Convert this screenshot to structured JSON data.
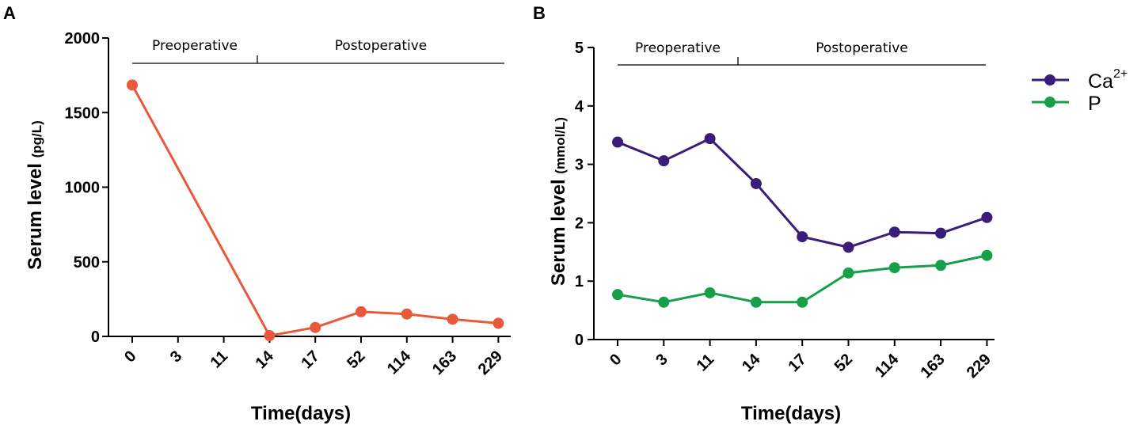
{
  "chart_data": [
    {
      "panel": "A",
      "type": "line",
      "categories": [
        "0",
        "3",
        "11",
        "14",
        "17",
        "52",
        "114",
        "163",
        "229"
      ],
      "xlabel": "Time(days)",
      "ylabel": "Serum level",
      "ylabel_unit": "(pg/L)",
      "ylim": [
        0,
        2000
      ],
      "yticks": [
        "0",
        "500",
        "1000",
        "1500",
        "2000"
      ],
      "phases": [
        {
          "label": "Preoperative",
          "from": 0,
          "to": 2.5
        },
        {
          "label": "Postoperative",
          "from": 2.5,
          "to": 8
        }
      ],
      "series": [
        {
          "name": "Serum level",
          "color": "#e8583a",
          "points": [
            [
              0,
              1685
            ],
            [
              3,
              5
            ],
            [
              4,
              60
            ],
            [
              5,
              165
            ],
            [
              6,
              150
            ],
            [
              7,
              115
            ],
            [
              8,
              88
            ]
          ]
        }
      ]
    },
    {
      "panel": "B",
      "type": "line",
      "categories": [
        "0",
        "3",
        "11",
        "14",
        "17",
        "52",
        "114",
        "163",
        "229"
      ],
      "xlabel": "Time(days)",
      "ylabel": "Serum level",
      "ylabel_unit": "(mmol/L)",
      "ylim": [
        0,
        5
      ],
      "yticks": [
        "0",
        "1",
        "2",
        "3",
        "4",
        "5"
      ],
      "phases": [
        {
          "label": "Preoperative",
          "from": 0,
          "to": 2.5
        },
        {
          "label": "Postoperative",
          "from": 2.5,
          "to": 8
        }
      ],
      "legend_position": "right",
      "series": [
        {
          "name": "Ca",
          "superscript": "2+",
          "color": "#3a1d78",
          "points": [
            [
              0,
              3.38
            ],
            [
              1,
              3.06
            ],
            [
              2,
              3.44
            ],
            [
              3,
              2.67
            ],
            [
              4,
              1.76
            ],
            [
              5,
              1.58
            ],
            [
              6,
              1.84
            ],
            [
              7,
              1.82
            ],
            [
              8,
              2.09
            ]
          ]
        },
        {
          "name": "P",
          "superscript": "",
          "color": "#16a04a",
          "points": [
            [
              0,
              0.77
            ],
            [
              1,
              0.64
            ],
            [
              2,
              0.8
            ],
            [
              3,
              0.64
            ],
            [
              4,
              0.64
            ],
            [
              5,
              1.14
            ],
            [
              6,
              1.23
            ],
            [
              7,
              1.27
            ],
            [
              8,
              1.44
            ]
          ]
        }
      ]
    }
  ]
}
